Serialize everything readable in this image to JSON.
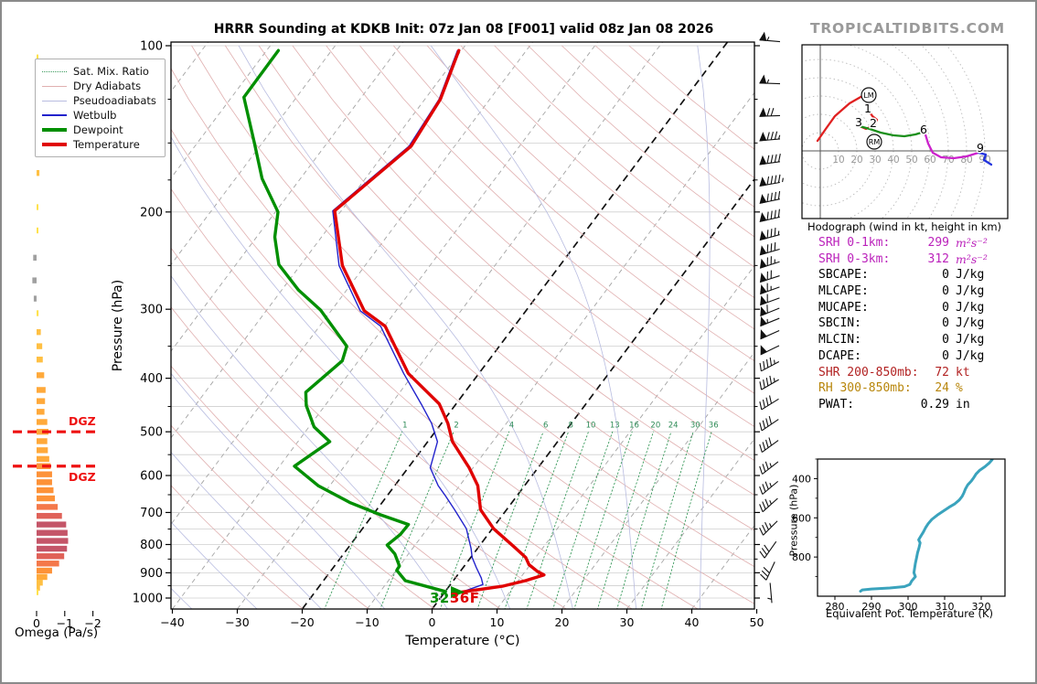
{
  "title": "HRRR Sounding at KDKB Init: 07z Jan 08 [F001] valid 08z Jan 08 2026",
  "watermark": "TROPICALTIDBITS.COM",
  "legend": {
    "items": [
      {
        "label": "Sat. Mix. Ratio",
        "color": "#3a9a5c",
        "style": "dotted",
        "width": 1
      },
      {
        "label": "Dry Adiabats",
        "color": "#e0b0b0",
        "style": "solid",
        "width": 1
      },
      {
        "label": "Pseudoadiabats",
        "color": "#b8bce0",
        "style": "solid",
        "width": 1
      },
      {
        "label": "Wetbulb",
        "color": "#2222cc",
        "style": "solid",
        "width": 2
      },
      {
        "label": "Dewpoint",
        "color": "#008f00",
        "style": "solid",
        "width": 4
      },
      {
        "label": "Temperature",
        "color": "#e00000",
        "style": "solid",
        "width": 4
      }
    ]
  },
  "chart_data": {
    "skewt": {
      "type": "line",
      "xlabel": "Temperature (°C)",
      "ylabel": "Pressure (hPa)",
      "x_ticks": [
        -40,
        -30,
        -20,
        -10,
        0,
        10,
        20,
        30,
        40,
        50
      ],
      "p_ticks": [
        100,
        200,
        300,
        400,
        500,
        600,
        700,
        800,
        900,
        1000
      ],
      "p_minor_ticks": [
        125,
        150,
        175,
        250,
        350,
        450,
        550,
        650,
        750,
        850,
        950
      ],
      "xlim": [
        -40,
        50
      ],
      "p_range": [
        100,
        1050
      ],
      "isotherm_step": 10,
      "bold_isotherms": [
        0,
        -20
      ],
      "mixing_ratio_lines": [
        1,
        2,
        4,
        6,
        8,
        10,
        13,
        16,
        20,
        24,
        30,
        36
      ],
      "surface_dewpoint_f": "32",
      "surface_temp_f": "36F",
      "series": [
        {
          "name": "Temperature",
          "color": "#e00000",
          "width": 3.4,
          "points": [
            [
              102,
              -60.4
            ],
            [
              125,
              -57.6
            ],
            [
              152,
              -56.7
            ],
            [
              199,
              -61.0
            ],
            [
              250,
              -53.5
            ],
            [
              302,
              -44.9
            ],
            [
              322,
              -39.9
            ],
            [
              392,
              -30.9
            ],
            [
              445,
              -22.6
            ],
            [
              483,
              -19.0
            ],
            [
              521,
              -16.2
            ],
            [
              581,
              -10.6
            ],
            [
              626,
              -7.2
            ],
            [
              692,
              -4.0
            ],
            [
              749,
              0.2
            ],
            [
              813,
              5.9
            ],
            [
              845,
              8.5
            ],
            [
              870,
              9.8
            ],
            [
              894,
              11.8
            ],
            [
              908,
              13.3
            ],
            [
              930,
              11.1
            ],
            [
              952,
              8.2
            ],
            [
              977,
              2.2
            ]
          ]
        },
        {
          "name": "Dewpoint",
          "color": "#008f00",
          "width": 3.4,
          "points": [
            [
              102,
              -88.2
            ],
            [
              124,
              -88.1
            ],
            [
              150,
              -81.2
            ],
            [
              174,
              -75.9
            ],
            [
              200,
              -69.6
            ],
            [
              222,
              -67.2
            ],
            [
              249,
              -63.4
            ],
            [
              277,
              -57.4
            ],
            [
              301,
              -51.7
            ],
            [
              350,
              -43.5
            ],
            [
              372,
              -42.5
            ],
            [
              424,
              -44.5
            ],
            [
              448,
              -42.9
            ],
            [
              490,
              -39.2
            ],
            [
              521,
              -35.1
            ],
            [
              546,
              -36.3
            ],
            [
              577,
              -37.7
            ],
            [
              626,
              -31.8
            ],
            [
              672,
              -24.9
            ],
            [
              707,
              -18.8
            ],
            [
              736,
              -13.4
            ],
            [
              767,
              -13.5
            ],
            [
              802,
              -14.3
            ],
            [
              832,
              -12.1
            ],
            [
              875,
              -10.0
            ],
            [
              891,
              -9.9
            ],
            [
              930,
              -7.4
            ],
            [
              973,
              0.0
            ]
          ]
        },
        {
          "name": "Wetbulb",
          "color": "#2222cc",
          "width": 1.4,
          "points": [
            [
              102,
              -60.6
            ],
            [
              125,
              -57.8
            ],
            [
              152,
              -57.0
            ],
            [
              199,
              -61.3
            ],
            [
              250,
              -54.0
            ],
            [
              302,
              -45.5
            ],
            [
              322,
              -40.6
            ],
            [
              392,
              -31.6
            ],
            [
              445,
              -25.4
            ],
            [
              483,
              -21.5
            ],
            [
              521,
              -18.5
            ],
            [
              581,
              -16.6
            ],
            [
              626,
              -13.3
            ],
            [
              652,
              -11.1
            ],
            [
              692,
              -8.0
            ],
            [
              749,
              -4.0
            ],
            [
              813,
              -1.0
            ],
            [
              844,
              0.2
            ],
            [
              880,
              2.0
            ],
            [
              920,
              4.0
            ],
            [
              945,
              5.0
            ],
            [
              973,
              2.8
            ]
          ]
        }
      ]
    },
    "wind_barbs": {
      "units": "kt",
      "levels": [
        [
          98,
          55,
          275
        ],
        [
          117,
          55,
          272
        ],
        [
          134,
          70,
          268
        ],
        [
          148,
          85,
          265
        ],
        [
          163,
          90,
          262
        ],
        [
          178,
          95,
          260
        ],
        [
          191,
          90,
          258
        ],
        [
          206,
          90,
          257
        ],
        [
          222,
          85,
          255
        ],
        [
          236,
          80,
          254
        ],
        [
          249,
          75,
          252
        ],
        [
          264,
          70,
          252
        ],
        [
          277,
          65,
          250
        ],
        [
          290,
          60,
          250
        ],
        [
          303,
          60,
          248
        ],
        [
          316,
          55,
          248
        ],
        [
          333,
          50,
          246
        ],
        [
          355,
          50,
          244
        ],
        [
          380,
          45,
          242
        ],
        [
          410,
          45,
          240
        ],
        [
          445,
          40,
          238
        ],
        [
          485,
          40,
          236
        ],
        [
          530,
          40,
          234
        ],
        [
          580,
          35,
          232
        ],
        [
          630,
          35,
          230
        ],
        [
          677,
          35,
          228
        ],
        [
          745,
          35,
          225
        ],
        [
          815,
          30,
          215
        ],
        [
          890,
          30,
          205
        ],
        [
          975,
          7,
          175
        ]
      ]
    },
    "omega": {
      "xlabel": "Omega (Pa/s)",
      "ticks": [
        0,
        -1,
        -2
      ],
      "dgz": {
        "label": "DGZ",
        "pressures": [
          500,
          577
        ],
        "color": "#ee1111"
      },
      "bars": [
        [
          105,
          -0.05
        ],
        [
          140,
          -0.07
        ],
        [
          170,
          -0.1
        ],
        [
          196,
          -0.05
        ],
        [
          216,
          -0.05
        ],
        [
          242,
          0.12
        ],
        [
          266,
          0.15
        ],
        [
          287,
          0.1
        ],
        [
          305,
          -0.07
        ],
        [
          330,
          -0.15
        ],
        [
          350,
          -0.2
        ],
        [
          370,
          -0.22
        ],
        [
          395,
          -0.27
        ],
        [
          420,
          -0.32
        ],
        [
          440,
          -0.3
        ],
        [
          460,
          -0.28
        ],
        [
          480,
          -0.38
        ],
        [
          500,
          -0.42
        ],
        [
          520,
          -0.38
        ],
        [
          540,
          -0.4
        ],
        [
          560,
          -0.45
        ],
        [
          577,
          -0.5
        ],
        [
          597,
          -0.55
        ],
        [
          617,
          -0.55
        ],
        [
          638,
          -0.6
        ],
        [
          660,
          -0.65
        ],
        [
          684,
          -0.75
        ],
        [
          710,
          -0.9
        ],
        [
          736,
          -1.05
        ],
        [
          762,
          -1.1
        ],
        [
          788,
          -1.12
        ],
        [
          814,
          -1.08
        ],
        [
          840,
          -0.98
        ],
        [
          866,
          -0.8
        ],
        [
          892,
          -0.55
        ],
        [
          916,
          -0.38
        ],
        [
          938,
          -0.22
        ],
        [
          958,
          -0.12
        ],
        [
          976,
          -0.06
        ]
      ]
    },
    "hodograph": {
      "caption": "Hodograph (wind in kt, height in km)",
      "ring_step_kt": 10,
      "ring_labels": [
        10,
        20,
        30,
        40,
        50,
        60,
        70,
        80,
        90
      ],
      "segments": [
        {
          "name": "0-3km",
          "color": "#e02020",
          "points": [
            [
              -1.5,
              5.5
            ],
            [
              3,
              12
            ],
            [
              8,
              19
            ],
            [
              16,
              26
            ],
            [
              23,
              30
            ],
            [
              26.5,
              28.5
            ],
            [
              26,
              23
            ],
            [
              28.5,
              19
            ],
            [
              31,
              17
            ],
            [
              29.5,
              14
            ],
            [
              25,
              12
            ],
            [
              21.5,
              13.5
            ]
          ]
        },
        {
          "name": "3-6km",
          "color": "#1a8f1a",
          "points": [
            [
              21.5,
              13.5
            ],
            [
              27,
              12
            ],
            [
              33,
              10
            ],
            [
              40,
              8.5
            ],
            [
              46,
              8
            ],
            [
              52,
              9
            ],
            [
              57,
              10.5
            ]
          ]
        },
        {
          "name": "6-9km",
          "color": "#cc22cc",
          "points": [
            [
              57,
              10.5
            ],
            [
              59,
              4
            ],
            [
              61.5,
              -1
            ],
            [
              66,
              -3.5
            ],
            [
              73,
              -4
            ],
            [
              80,
              -3
            ],
            [
              86.5,
              -1
            ]
          ]
        },
        {
          "name": "9km+",
          "color": "#2233dd",
          "points": [
            [
              86.5,
              -1
            ],
            [
              90.5,
              -2
            ],
            [
              89.5,
              -5
            ],
            [
              93.5,
              -7.5
            ]
          ]
        }
      ],
      "storm_markers": [
        {
          "label": "LM",
          "u": 26.5,
          "v": 30.5
        },
        {
          "label": "RM",
          "u": 29.5,
          "v": 5
        }
      ],
      "height_labels": [
        {
          "label": "1",
          "u": 26,
          "v": 23
        },
        {
          "label": "2",
          "u": 29,
          "v": 15
        },
        {
          "label": "3",
          "u": 21,
          "v": 15.5
        },
        {
          "label": "6",
          "u": 56.5,
          "v": 11.5
        },
        {
          "label": "9",
          "u": 87.5,
          "v": 1.5
        }
      ]
    },
    "theta_e": {
      "type": "line",
      "xlabel": "Equivalent Pot. Temperature (K)",
      "ylabel": "Pressure (hPa)",
      "x_ticks": [
        280,
        290,
        300,
        310,
        320
      ],
      "p_ticks": [
        400,
        600,
        800
      ],
      "p_minor_ticks": [
        300,
        500,
        700,
        900
      ],
      "color": "#3aa3bd",
      "curve": [
        [
          287,
          975
        ],
        [
          287.5,
          968
        ],
        [
          290,
          963
        ],
        [
          295,
          958
        ],
        [
          299,
          951
        ],
        [
          300.5,
          940
        ],
        [
          301,
          922
        ],
        [
          302,
          900
        ],
        [
          301.6,
          880
        ],
        [
          301.8,
          856
        ],
        [
          302,
          832
        ],
        [
          302.3,
          806
        ],
        [
          302.6,
          778
        ],
        [
          303,
          752
        ],
        [
          303.3,
          728
        ],
        [
          302.9,
          712
        ],
        [
          303.4,
          696
        ],
        [
          304.2,
          672
        ],
        [
          304.8,
          650
        ],
        [
          305.5,
          630
        ],
        [
          306.5,
          608
        ],
        [
          308,
          586
        ],
        [
          309.6,
          566
        ],
        [
          311.2,
          546
        ],
        [
          312.8,
          528
        ],
        [
          314,
          509
        ],
        [
          314.8,
          490
        ],
        [
          315.3,
          471
        ],
        [
          315.7,
          452
        ],
        [
          316.3,
          432
        ],
        [
          317.3,
          412
        ],
        [
          318,
          394
        ],
        [
          318.6,
          376
        ],
        [
          319.6,
          357
        ],
        [
          321,
          339
        ],
        [
          322.2,
          320
        ],
        [
          323,
          303
        ]
      ]
    }
  },
  "stats": {
    "rows": [
      {
        "label": "SRH 0-1km:",
        "value": "299",
        "unit": "m²s⁻²",
        "color": "#bb22bb",
        "italic_unit": true
      },
      {
        "label": "SRH 0-3km:",
        "value": "312",
        "unit": "m²s⁻²",
        "color": "#bb22bb",
        "italic_unit": true
      },
      {
        "label": "SBCAPE:",
        "value": "0",
        "unit": "J/kg",
        "color": "#000000",
        "italic_unit": false
      },
      {
        "label": "MLCAPE:",
        "value": "0",
        "unit": "J/kg",
        "color": "#000000",
        "italic_unit": false
      },
      {
        "label": "MUCAPE:",
        "value": "0",
        "unit": "J/kg",
        "color": "#000000",
        "italic_unit": false
      },
      {
        "label": "SBCIN:",
        "value": "0",
        "unit": "J/kg",
        "color": "#000000",
        "italic_unit": false
      },
      {
        "label": "MLCIN:",
        "value": "0",
        "unit": "J/kg",
        "color": "#000000",
        "italic_unit": false
      },
      {
        "label": "DCAPE:",
        "value": "0",
        "unit": "J/kg",
        "color": "#000000",
        "italic_unit": false
      },
      {
        "label": "SHR 200-850mb:",
        "value": "72",
        "unit": "kt",
        "color": "#b22222",
        "italic_unit": false
      },
      {
        "label": "RH 300-850mb:",
        "value": "24",
        "unit": "%",
        "color": "#b8860b",
        "italic_unit": false
      },
      {
        "label": "PWAT:",
        "value": "0.29",
        "unit": "in",
        "color": "#000000",
        "italic_unit": false
      }
    ]
  }
}
